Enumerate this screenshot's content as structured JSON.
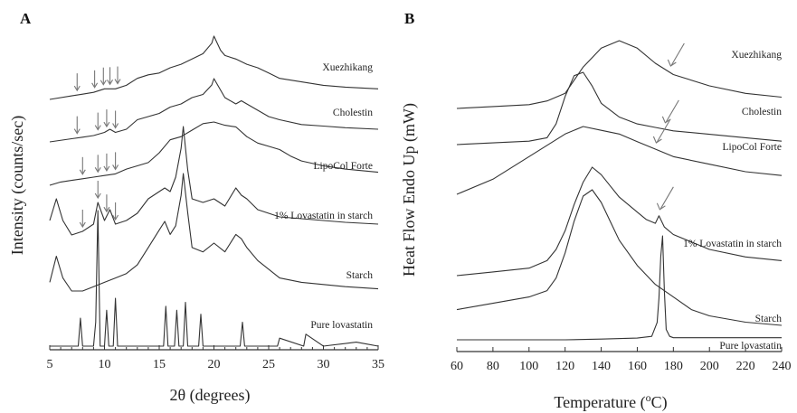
{
  "chart_data": [
    {
      "panel": "A",
      "type": "line",
      "xlabel": "2θ (degrees)",
      "ylabel": "Intensity (counts/sec)",
      "xlim": [
        5,
        35
      ],
      "x_ticks": [
        5,
        10,
        15,
        20,
        25,
        30,
        35
      ],
      "y_ticks_shown": false,
      "series": [
        {
          "name": "Xuezhikang",
          "x": [
            5,
            7,
            8,
            9,
            10,
            11,
            12,
            13,
            14,
            15,
            16,
            17,
            18,
            19,
            19.8,
            20,
            20.6,
            21,
            22,
            23,
            24,
            25,
            26,
            28,
            30,
            32,
            35
          ],
          "values": [
            0.86,
            0.87,
            0.875,
            0.88,
            0.89,
            0.89,
            0.9,
            0.92,
            0.93,
            0.935,
            0.95,
            0.96,
            0.975,
            0.99,
            1.02,
            1.04,
            1.0,
            0.985,
            0.975,
            0.96,
            0.95,
            0.935,
            0.92,
            0.91,
            0.9,
            0.895,
            0.89
          ],
          "arrows_at": [
            7.5,
            9.1,
            9.9,
            10.5,
            11.2
          ]
        },
        {
          "name": "Cholestin",
          "x": [
            5,
            7,
            8,
            9,
            10,
            10.5,
            11,
            12,
            13,
            14,
            15,
            16,
            17,
            18,
            19,
            19.8,
            20,
            21,
            22,
            22.5,
            23,
            24,
            25,
            26,
            28,
            30,
            32,
            35
          ],
          "values": [
            0.72,
            0.73,
            0.735,
            0.74,
            0.75,
            0.76,
            0.75,
            0.76,
            0.79,
            0.8,
            0.81,
            0.83,
            0.84,
            0.86,
            0.87,
            0.9,
            0.92,
            0.86,
            0.84,
            0.85,
            0.84,
            0.82,
            0.8,
            0.79,
            0.775,
            0.77,
            0.765,
            0.76
          ],
          "arrows_at": [
            7.5,
            9.4,
            10.2,
            11.0
          ]
        },
        {
          "name": "LipoCol Forte",
          "x": [
            5,
            6,
            7,
            8,
            9,
            10,
            11,
            12,
            13,
            14,
            15,
            16,
            17,
            18,
            19,
            20,
            21,
            22,
            23,
            24,
            25,
            26,
            27,
            28,
            30,
            32,
            35
          ],
          "values": [
            0.55,
            0.56,
            0.565,
            0.57,
            0.575,
            0.58,
            0.585,
            0.6,
            0.61,
            0.62,
            0.65,
            0.69,
            0.7,
            0.72,
            0.74,
            0.745,
            0.735,
            0.73,
            0.7,
            0.68,
            0.67,
            0.66,
            0.64,
            0.625,
            0.61,
            0.6,
            0.59
          ],
          "arrows_at": [
            8.0,
            9.4,
            10.2,
            11.0
          ]
        },
        {
          "name": "1% Lovastatin in starch",
          "x": [
            5,
            5.6,
            6.2,
            7,
            8,
            9,
            9.4,
            10,
            10.5,
            11,
            12,
            13,
            14,
            15,
            15.5,
            16,
            16.5,
            17,
            17.2,
            17.6,
            18,
            19,
            20,
            21,
            22,
            22.5,
            23,
            24,
            25,
            26,
            28,
            30,
            32,
            35
          ],
          "values": [
            0.38,
            0.44,
            0.38,
            0.34,
            0.35,
            0.37,
            0.43,
            0.38,
            0.41,
            0.37,
            0.38,
            0.4,
            0.44,
            0.46,
            0.47,
            0.46,
            0.5,
            0.58,
            0.64,
            0.52,
            0.44,
            0.43,
            0.44,
            0.42,
            0.47,
            0.45,
            0.44,
            0.41,
            0.4,
            0.39,
            0.385,
            0.38,
            0.375,
            0.37
          ],
          "arrows_at": [
            8.0,
            9.4,
            10.2,
            11.0
          ]
        },
        {
          "name": "Starch",
          "x": [
            5,
            5.6,
            6.2,
            7,
            8,
            9,
            10,
            11,
            12,
            13,
            14,
            15,
            15.5,
            16,
            16.5,
            17,
            17.2,
            17.6,
            18,
            19,
            20,
            21,
            22,
            22.5,
            23,
            24,
            25,
            26,
            28,
            30,
            32,
            35
          ],
          "values": [
            0.2,
            0.26,
            0.21,
            0.18,
            0.18,
            0.19,
            0.2,
            0.21,
            0.22,
            0.24,
            0.28,
            0.32,
            0.34,
            0.31,
            0.33,
            0.4,
            0.45,
            0.36,
            0.28,
            0.27,
            0.29,
            0.27,
            0.31,
            0.3,
            0.28,
            0.25,
            0.23,
            0.21,
            0.2,
            0.195,
            0.19,
            0.185
          ]
        },
        {
          "name": "Pure lovastatin",
          "x": [
            5,
            7.6,
            7.8,
            8.0,
            8.5,
            9.0,
            9.2,
            9.4,
            9.6,
            10.0,
            10.2,
            10.4,
            10.8,
            11.0,
            11.2,
            12,
            14,
            15.4,
            15.6,
            15.8,
            16.4,
            16.6,
            16.8,
            17.2,
            17.4,
            17.6,
            18.6,
            18.8,
            19.0,
            20,
            22.4,
            22.6,
            22.8,
            24,
            25.8,
            26,
            28.2,
            28.4,
            30,
            33,
            35
          ],
          "values": [
            0.0,
            0.0,
            0.07,
            0.0,
            0.0,
            0.0,
            0.06,
            0.34,
            0.0,
            0.0,
            0.09,
            0.0,
            0.0,
            0.12,
            0.0,
            0.0,
            0.0,
            0.0,
            0.1,
            0.0,
            0.0,
            0.09,
            0.0,
            0.0,
            0.11,
            0.0,
            0.0,
            0.08,
            0.0,
            0.0,
            0.0,
            0.06,
            0.0,
            0.0,
            0.0,
            0.02,
            0.0,
            0.03,
            0.0,
            0.01,
            0.0
          ]
        }
      ]
    },
    {
      "panel": "B",
      "type": "line",
      "xlabel": "Temperature (°C)",
      "ylabel": "Heat Flow Endo Up (mW)",
      "xlim": [
        60,
        240
      ],
      "x_ticks": [
        60,
        80,
        100,
        120,
        140,
        160,
        180,
        200,
        220,
        240
      ],
      "y_ticks_shown": false,
      "series": [
        {
          "name": "Xuezhikang",
          "x": [
            60,
            80,
            100,
            110,
            120,
            130,
            140,
            150,
            160,
            170,
            180,
            200,
            220,
            240
          ],
          "values": [
            0.84,
            0.845,
            0.85,
            0.86,
            0.88,
            0.95,
            1.0,
            1.02,
            1.0,
            0.96,
            0.93,
            0.9,
            0.88,
            0.87
          ],
          "arrows_at": [
            178
          ]
        },
        {
          "name": "Cholestin",
          "x": [
            60,
            80,
            100,
            110,
            115,
            120,
            125,
            130,
            135,
            140,
            150,
            160,
            170,
            180,
            200,
            220,
            240
          ],
          "values": [
            0.68,
            0.685,
            0.69,
            0.7,
            0.74,
            0.82,
            0.88,
            0.89,
            0.85,
            0.8,
            0.76,
            0.74,
            0.73,
            0.72,
            0.71,
            0.7,
            0.69
          ],
          "arrows_at": [
            175
          ]
        },
        {
          "name": "LipoCol Forte",
          "x": [
            60,
            80,
            100,
            120,
            130,
            140,
            150,
            160,
            170,
            180,
            200,
            220,
            240
          ],
          "values": [
            0.56,
            0.58,
            0.61,
            0.64,
            0.65,
            0.645,
            0.64,
            0.63,
            0.62,
            0.61,
            0.6,
            0.59,
            0.585
          ],
          "arrows_at": [
            170
          ]
        },
        {
          "name": "1% Lovastatin in starch",
          "x": [
            60,
            80,
            100,
            110,
            115,
            120,
            125,
            130,
            135,
            140,
            145,
            150,
            160,
            165,
            170,
            172,
            175,
            180,
            190,
            200,
            220,
            240
          ],
          "values": [
            0.23,
            0.24,
            0.25,
            0.27,
            0.3,
            0.35,
            0.42,
            0.48,
            0.52,
            0.5,
            0.47,
            0.44,
            0.4,
            0.38,
            0.37,
            0.39,
            0.36,
            0.34,
            0.32,
            0.3,
            0.28,
            0.27
          ],
          "arrows_at": [
            172
          ]
        },
        {
          "name": "Starch",
          "x": [
            60,
            80,
            100,
            110,
            115,
            120,
            125,
            130,
            135,
            140,
            145,
            150,
            160,
            170,
            180,
            190,
            200,
            220,
            240
          ],
          "values": [
            0.15,
            0.16,
            0.17,
            0.18,
            0.2,
            0.24,
            0.29,
            0.33,
            0.34,
            0.32,
            0.29,
            0.26,
            0.22,
            0.19,
            0.17,
            0.15,
            0.14,
            0.13,
            0.125
          ]
        },
        {
          "name": "Pure lovastatin",
          "x": [
            60,
            80,
            100,
            120,
            140,
            160,
            168,
            171,
            172,
            173,
            174,
            175,
            176,
            178,
            180,
            200,
            220,
            240
          ],
          "values": [
            0.0,
            0.0,
            0.0,
            0.0,
            0.002,
            0.005,
            0.01,
            0.05,
            0.12,
            0.24,
            0.3,
            0.14,
            0.03,
            0.01,
            0.006,
            0.006,
            0.006,
            0.006
          ]
        }
      ]
    }
  ],
  "figure": {
    "panel_a_label": "A",
    "panel_b_label": "B",
    "a_xlabel": "2θ (degrees)",
    "a_ylabel": "Intensity (counts/sec)",
    "b_xlabel_prefix": "Temperature (",
    "b_xlabel_super": "o",
    "b_xlabel_suffix": "C)",
    "b_ylabel": "Heat Flow Endo Up (mW)"
  }
}
